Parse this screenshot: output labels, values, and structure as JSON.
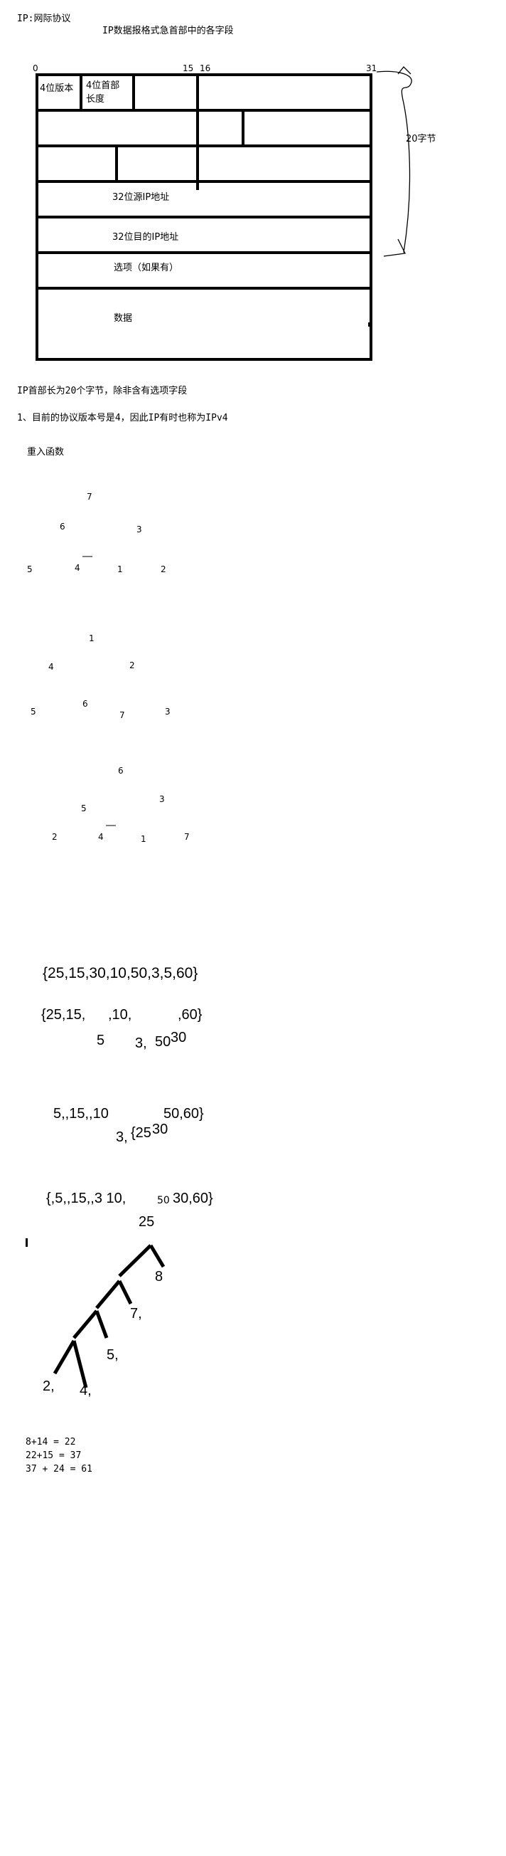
{
  "title": "IP:网际协议",
  "subtitle": "IP数据报格式急首部中的各字段",
  "diagram": {
    "bits": [
      "0",
      "15",
      "16",
      "31"
    ],
    "field_version": "4位版本",
    "field_header_len_1": "4位首部",
    "field_header_len_2": "长度",
    "src_ip": "32位源IP地址",
    "dst_ip": "32位目的IP地址",
    "options": "选项（如果有）",
    "data": "数据",
    "size_label": "20字节"
  },
  "notes": {
    "header_size": "IP首部长为20个字节，除非含有选项字段",
    "version": "1、目前的协议版本号是4，因此IP有时也称为IPv4",
    "heap_title": "重入函数"
  },
  "tree1": {
    "n7": "7",
    "n6": "6",
    "n3": "3",
    "n5": "5",
    "n4": "4",
    "n1": "1",
    "n2": "2"
  },
  "tree2": {
    "n1": "1",
    "n4": "4",
    "n2": "2",
    "n5": "5",
    "n6": "6",
    "n7": "7",
    "n3": "3"
  },
  "tree3": {
    "n6": "6",
    "n3": "3",
    "n5": "5",
    "n2": "2",
    "n4": "4",
    "n1": "1",
    "n7": "7"
  },
  "arrays": {
    "a1": "{25,15,30,10,50,3,5,60}",
    "a2_left": "{25,15,",
    "a2_mid": ",10,",
    "a2_right": ",60}",
    "a2_below_1": "5",
    "a2_below_2": "3,",
    "a2_below_3": "50",
    "a2_below_4": "30",
    "a3_left": "5,,15,,10",
    "a3_right": "50,60}",
    "a3_below_1": "3,",
    "a3_below_2": "{25",
    "a3_below_3": "30",
    "a4": "{,5,,15,,3   10,",
    "a4_right": "50",
    "a4_right2": "30,60}"
  },
  "huffman": {
    "root": "25",
    "n8": "8",
    "n7": "7,",
    "n5": "5,",
    "n2": "2,",
    "n4": "4,"
  },
  "sums": {
    "line1": "8+14 = 22",
    "line2": "22+15 = 37",
    "line3": "37 + 24 = 61"
  }
}
